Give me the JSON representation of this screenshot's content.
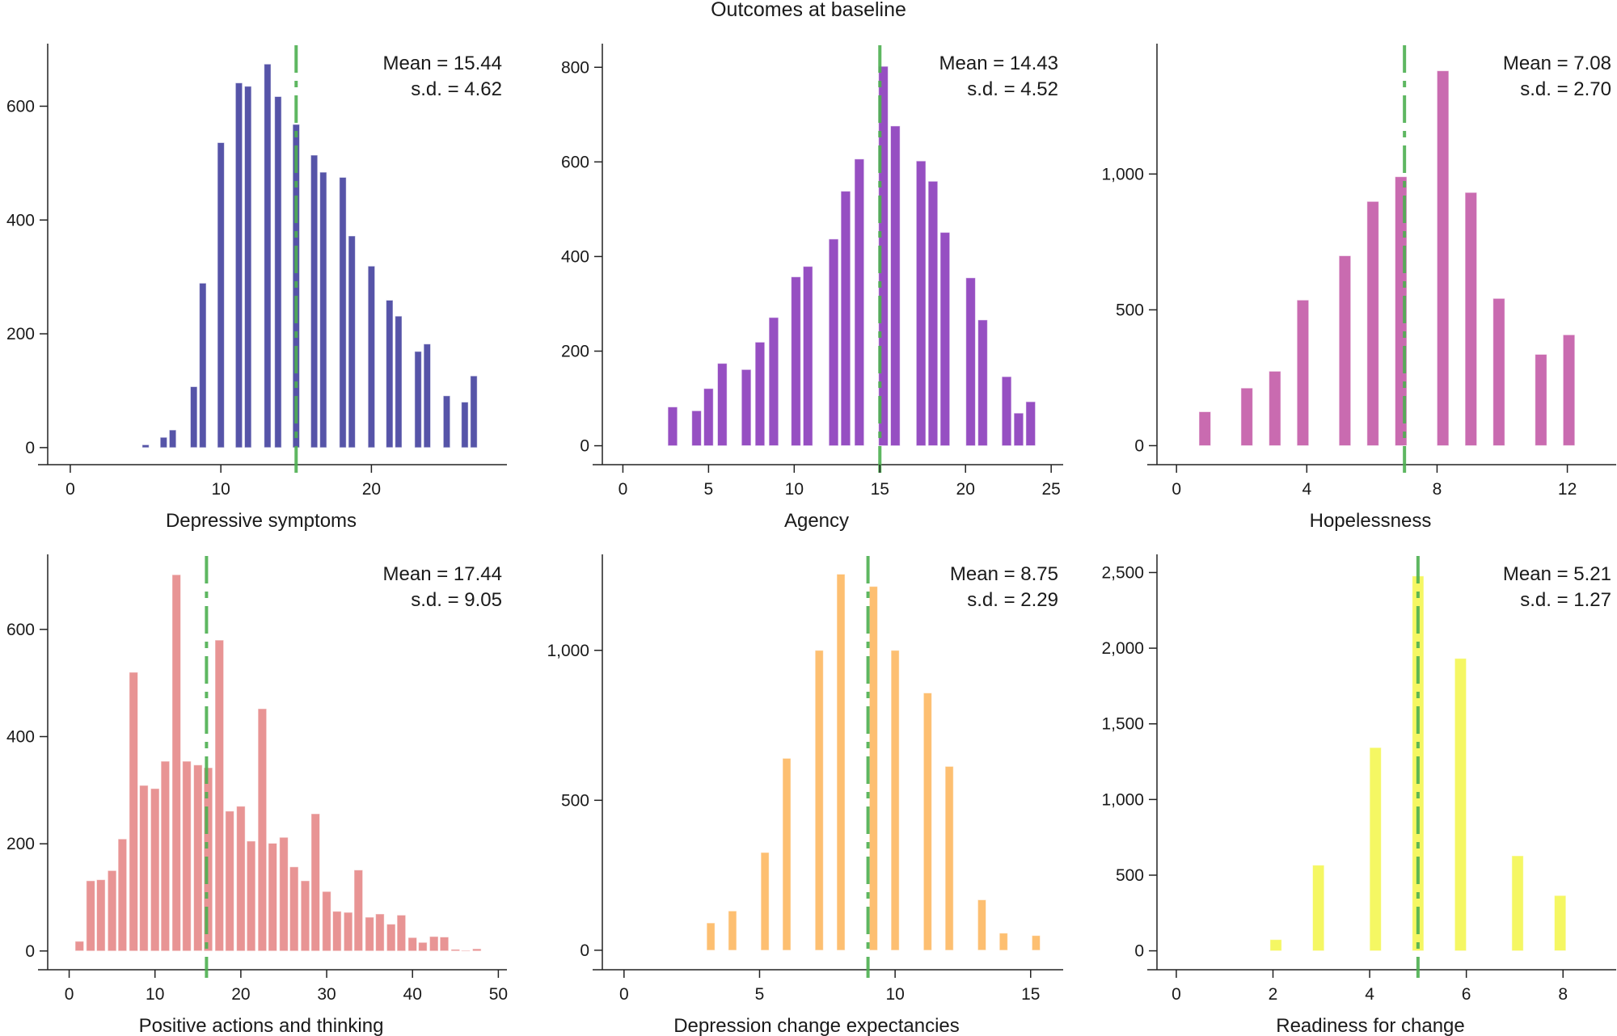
{
  "figure": {
    "title": "Outcomes at baseline",
    "mean_line_color": "#4caf50"
  },
  "chart_data": [
    {
      "type": "bar",
      "title": "",
      "xlabel": "Depressive symptoms",
      "ylabel": "",
      "color": "#5654a8",
      "xlim": [
        -1.5,
        29
      ],
      "ylim": [
        -30,
        710
      ],
      "xticks": [
        0,
        10,
        20
      ],
      "xtick_labels": [
        "0",
        "10",
        "20"
      ],
      "yticks": [
        0,
        200,
        400,
        600
      ],
      "ytick_labels": [
        "0",
        "200",
        "400",
        "600"
      ],
      "bar_width": 0.45,
      "x": [
        5,
        6.2,
        6.8,
        8.2,
        8.8,
        10,
        11.2,
        11.8,
        13.1,
        13.8,
        15,
        16.2,
        16.8,
        18.1,
        18.7,
        20,
        21.2,
        21.8,
        23.1,
        23.7,
        25,
        26.2,
        26.8
      ],
      "values": [
        5,
        18,
        31,
        107,
        289,
        536,
        641,
        635,
        674,
        617,
        568,
        514,
        484,
        475,
        372,
        319,
        259,
        231,
        169,
        182,
        91,
        80,
        126
      ],
      "mean": 15.44,
      "sd": 4.62,
      "mean_line_x": 15,
      "stat_mean_label": "Mean = 15.44",
      "stat_sd_label": "s.d. = 4.62",
      "grid": false
    },
    {
      "type": "bar",
      "title": "",
      "xlabel": "Agency",
      "ylabel": "",
      "color": "#964fc2",
      "xlim": [
        -1.2,
        25.7
      ],
      "ylim": [
        -40,
        850
      ],
      "xticks": [
        0,
        5,
        10,
        15,
        20,
        25
      ],
      "xtick_labels": [
        "0",
        "5",
        "10",
        "15",
        "20",
        "25"
      ],
      "yticks": [
        0,
        200,
        400,
        600,
        800
      ],
      "ytick_labels": [
        "0",
        "200",
        "400",
        "600",
        "800"
      ],
      "bar_width": 0.55,
      "x": [
        2.9,
        4.3,
        5.0,
        5.8,
        7.2,
        8.0,
        8.8,
        10.1,
        10.8,
        12.3,
        13.0,
        13.8,
        15.2,
        15.9,
        17.4,
        18.1,
        18.8,
        20.3,
        21.0,
        22.4,
        23.1,
        23.8
      ],
      "values": [
        82,
        74,
        121,
        174,
        161,
        219,
        271,
        357,
        379,
        437,
        538,
        606,
        802,
        676,
        602,
        559,
        451,
        355,
        266,
        146,
        69,
        93
      ],
      "mean": 14.43,
      "sd": 4.52,
      "mean_line_x": 15,
      "stat_mean_label": "Mean = 14.43",
      "stat_sd_label": "s.d. = 4.52",
      "grid": false
    },
    {
      "type": "bar",
      "title": "",
      "xlabel": "Hopelessness",
      "ylabel": "",
      "color": "#c96bb0",
      "xlim": [
        -0.6,
        13.5
      ],
      "ylim": [
        -70,
        1480
      ],
      "xticks": [
        0,
        4,
        8,
        12
      ],
      "xtick_labels": [
        "0",
        "4",
        "8",
        "12"
      ],
      "yticks": [
        0,
        500,
        1000
      ],
      "ytick_labels": [
        "0",
        "500",
        "1,000"
      ],
      "bar_width": 0.36,
      "x": [
        0.87,
        2.16,
        3.02,
        3.88,
        5.17,
        6.03,
        6.89,
        8.18,
        9.04,
        9.9,
        11.19,
        12.05
      ],
      "values": [
        125,
        212,
        274,
        536,
        699,
        899,
        990,
        1380,
        932,
        542,
        336,
        408
      ],
      "mean": 7.08,
      "sd": 2.7,
      "mean_line_x": 7,
      "stat_mean_label": "Mean = 7.08",
      "stat_sd_label": "s.d. = 2.70",
      "grid": false
    },
    {
      "type": "bar",
      "title": "",
      "xlabel": "Positive actions and thinking",
      "ylabel": "",
      "color": "#e89494",
      "xlim": [
        -2.5,
        51
      ],
      "ylim": [
        -35,
        740
      ],
      "xticks": [
        0,
        10,
        20,
        30,
        40,
        50
      ],
      "xtick_labels": [
        "0",
        "10",
        "20",
        "30",
        "40",
        "50"
      ],
      "yticks": [
        0,
        200,
        400,
        600
      ],
      "ytick_labels": [
        "0",
        "200",
        "400",
        "600"
      ],
      "bar_width": 1.0,
      "x": [
        1.2,
        2.5,
        3.7,
        5.0,
        6.2,
        7.5,
        8.7,
        10.0,
        11.2,
        12.5,
        13.7,
        15.0,
        16.2,
        17.5,
        18.7,
        20.0,
        21.2,
        22.5,
        23.7,
        25.0,
        26.2,
        27.5,
        28.7,
        30.0,
        31.2,
        32.5,
        33.7,
        35.0,
        36.2,
        37.5,
        38.7,
        40.0,
        41.2,
        42.5,
        43.7,
        45.0,
        46.2,
        47.5
      ],
      "values": [
        18,
        131,
        133,
        150,
        209,
        520,
        309,
        303,
        354,
        702,
        354,
        347,
        342,
        580,
        261,
        270,
        205,
        452,
        201,
        212,
        157,
        131,
        256,
        111,
        74,
        72,
        151,
        63,
        69,
        50,
        67,
        25,
        16,
        27,
        26,
        3,
        1,
        4
      ],
      "mean": 17.44,
      "sd": 9.05,
      "mean_line_x": 16,
      "stat_mean_label": "Mean = 17.44",
      "stat_sd_label": "s.d. = 9.05",
      "grid": false
    },
    {
      "type": "bar",
      "title": "",
      "xlabel": "Depression change expectancies",
      "ylabel": "",
      "color": "#fdbf71",
      "xlim": [
        -0.8,
        16.2
      ],
      "ylim": [
        -65,
        1320
      ],
      "xticks": [
        0,
        5,
        10,
        15
      ],
      "xtick_labels": [
        "0",
        "5",
        "10",
        "15"
      ],
      "yticks": [
        0,
        500,
        1000
      ],
      "ytick_labels": [
        "0",
        "500",
        "1,000"
      ],
      "bar_width": 0.3,
      "x": [
        3.2,
        4.0,
        5.2,
        6.0,
        7.2,
        8.0,
        9.2,
        10.0,
        11.2,
        12.0,
        13.2,
        14.0,
        15.2
      ],
      "values": [
        91,
        131,
        326,
        640,
        1000,
        1254,
        1213,
        1000,
        858,
        613,
        168,
        57,
        49
      ],
      "mean": 8.75,
      "sd": 2.29,
      "mean_line_x": 9,
      "stat_mean_label": "Mean = 8.75",
      "stat_sd_label": "s.d. = 2.29",
      "grid": false
    },
    {
      "type": "bar",
      "title": "",
      "xlabel": "Readiness for change",
      "ylabel": "",
      "color": "#f5f763",
      "xlim": [
        -0.4,
        9.1
      ],
      "ylim": [
        -125,
        2620
      ],
      "xticks": [
        0,
        2,
        4,
        6,
        8
      ],
      "xtick_labels": [
        "0",
        "2",
        "4",
        "6",
        "8"
      ],
      "yticks": [
        0,
        500,
        1000,
        1500,
        2000,
        2500
      ],
      "ytick_labels": [
        "0",
        "500",
        "1,000",
        "1,500",
        "2,000",
        "2,500"
      ],
      "bar_width": 0.24,
      "x": [
        2.06,
        2.94,
        4.12,
        5.0,
        5.88,
        7.06,
        7.94
      ],
      "values": [
        74,
        566,
        1343,
        2477,
        1932,
        628,
        365
      ],
      "mean": 5.21,
      "sd": 1.27,
      "mean_line_x": 5,
      "stat_mean_label": "Mean = 5.21",
      "stat_sd_label": "s.d. = 1.27",
      "grid": false
    }
  ]
}
